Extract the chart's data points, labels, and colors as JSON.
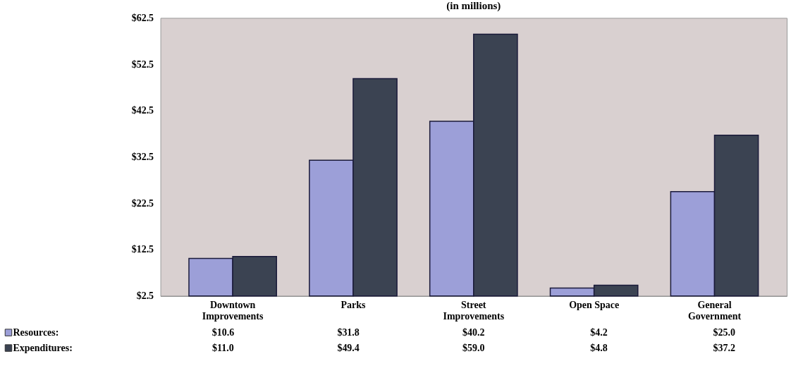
{
  "chart_data": {
    "type": "bar",
    "title": "(in millions)",
    "categories": [
      "Downtown Improvements",
      "Parks",
      "Street Improvements",
      "Open Space",
      "General Government"
    ],
    "series": [
      {
        "name": "Resources:",
        "color": "#9c9fd8",
        "values": [
          10.6,
          31.8,
          40.2,
          4.2,
          25.0
        ],
        "value_labels": [
          "$10.6",
          "$31.8",
          "$40.2",
          "$4.2",
          "$25.0"
        ]
      },
      {
        "name": "Expenditures:",
        "color": "#3b4352",
        "values": [
          11.0,
          49.4,
          59.0,
          4.8,
          37.2
        ],
        "value_labels": [
          "$11.0",
          "$49.4",
          "$59.0",
          "$4.8",
          "$37.2"
        ]
      }
    ],
    "ylim": [
      2.5,
      62.5
    ],
    "yticks": [
      {
        "value": 2.5,
        "label": "$2.5"
      },
      {
        "value": 12.5,
        "label": "$12.5"
      },
      {
        "value": 22.5,
        "label": "$22.5"
      },
      {
        "value": 32.5,
        "label": "$32.5"
      },
      {
        "value": 42.5,
        "label": "$42.5"
      },
      {
        "value": 52.5,
        "label": "$52.5"
      },
      {
        "value": 62.5,
        "label": "$62.5"
      }
    ],
    "grid": false,
    "legend": "bottom left"
  }
}
